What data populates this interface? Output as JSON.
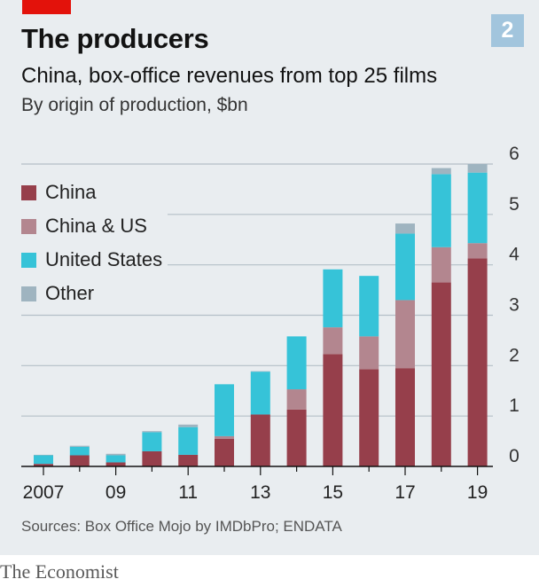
{
  "header": {
    "title": "The producers",
    "chart_number": "2",
    "subtitle": "China, box-office revenues from top 25 films",
    "unit_line": "By origin of production, $bn"
  },
  "footer": {
    "source": "Sources: Box Office Mojo by IMDbPro; ENDATA",
    "logo": "The Economist"
  },
  "colors": {
    "china": "#963f4b",
    "china_us": "#b3868f",
    "united_states": "#36c3d8",
    "other": "#9fb4c0",
    "gridline": "#b4bfc7",
    "axis": "#121212"
  },
  "chart_data": {
    "type": "bar",
    "stacked": true,
    "x": [
      "2007",
      "2008",
      "2009",
      "2010",
      "2011",
      "2012",
      "2013",
      "2014",
      "2015",
      "2016",
      "2017",
      "2018",
      "2019"
    ],
    "x_tick_labels": [
      "2007",
      "",
      "09",
      "",
      "11",
      "",
      "13",
      "",
      "15",
      "",
      "17",
      "",
      "19"
    ],
    "series": [
      {
        "name": "China",
        "color": "#963f4b",
        "values": [
          0.05,
          0.22,
          0.08,
          0.3,
          0.23,
          0.55,
          1.03,
          1.13,
          2.23,
          1.93,
          1.95,
          3.65,
          4.13
        ]
      },
      {
        "name": "China & US",
        "color": "#b3868f",
        "values": [
          0.0,
          0.0,
          0.0,
          0.0,
          0.0,
          0.05,
          0.0,
          0.4,
          0.53,
          0.65,
          1.35,
          0.7,
          0.3
        ]
      },
      {
        "name": "United States",
        "color": "#36c3d8",
        "values": [
          0.17,
          0.17,
          0.14,
          0.38,
          0.55,
          1.03,
          0.85,
          1.05,
          1.15,
          1.2,
          1.32,
          1.45,
          1.4
        ]
      },
      {
        "name": "Other",
        "color": "#9fb4c0",
        "values": [
          0.01,
          0.02,
          0.03,
          0.02,
          0.05,
          0.0,
          0.01,
          0.0,
          0.0,
          0.0,
          0.2,
          0.12,
          0.17
        ]
      }
    ],
    "ylim": [
      0,
      6
    ],
    "y_ticks": [
      "0",
      "1",
      "2",
      "3",
      "4",
      "5",
      "6"
    ],
    "grid": true,
    "legend_position": "top-left"
  }
}
